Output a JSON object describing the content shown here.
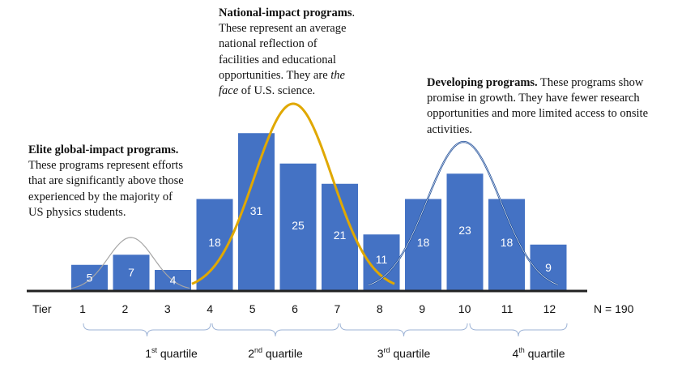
{
  "chart_data": {
    "type": "bar",
    "title": "",
    "xlabel": "Tier",
    "ylabel": "",
    "categories": [
      "1",
      "2",
      "3",
      "4",
      "5",
      "6",
      "7",
      "8",
      "9",
      "10",
      "11",
      "12"
    ],
    "values": [
      5,
      7,
      4,
      18,
      31,
      25,
      21,
      11,
      18,
      23,
      18,
      9
    ],
    "bar_color": "#4472C4",
    "total_label": "N = 190",
    "curves": [
      {
        "color": "#A6A6A6",
        "span_tiers": [
          1,
          3
        ],
        "peak_tier": 2
      },
      {
        "color": "#E0A800",
        "span_tiers": [
          3,
          8
        ],
        "peak_tier": 5.5
      },
      {
        "color": "#1F4E99",
        "span_tiers": [
          8,
          12
        ],
        "peak_tier": 10
      }
    ],
    "quartiles": [
      {
        "ord": "1",
        "sup": "st",
        "label": " quartile",
        "tiers": [
          1,
          4
        ]
      },
      {
        "ord": "2",
        "sup": "nd",
        "label": " quartile",
        "tiers": [
          4,
          7
        ]
      },
      {
        "ord": "3",
        "sup": "rd",
        "label": " quartile",
        "tiers": [
          7,
          10
        ]
      },
      {
        "ord": "4",
        "sup": "th",
        "label": " quartile",
        "tiers": [
          10,
          12
        ]
      }
    ],
    "annotations": {
      "elite": {
        "title": "Elite global-impact programs.",
        "body": " These programs represent efforts that are significantly above those experienced by the majority of US physics students."
      },
      "national": {
        "title": "National-impact programs",
        "body1": ". These represent an average national reflection of facilities and educational opportunities. They are ",
        "italic1": "the face",
        "body2": " of U.S. science."
      },
      "developing": {
        "title": "Developing programs.",
        "body": " These programs show promise in growth. They have fewer research opportunities and more limited access to onsite activities."
      }
    }
  }
}
